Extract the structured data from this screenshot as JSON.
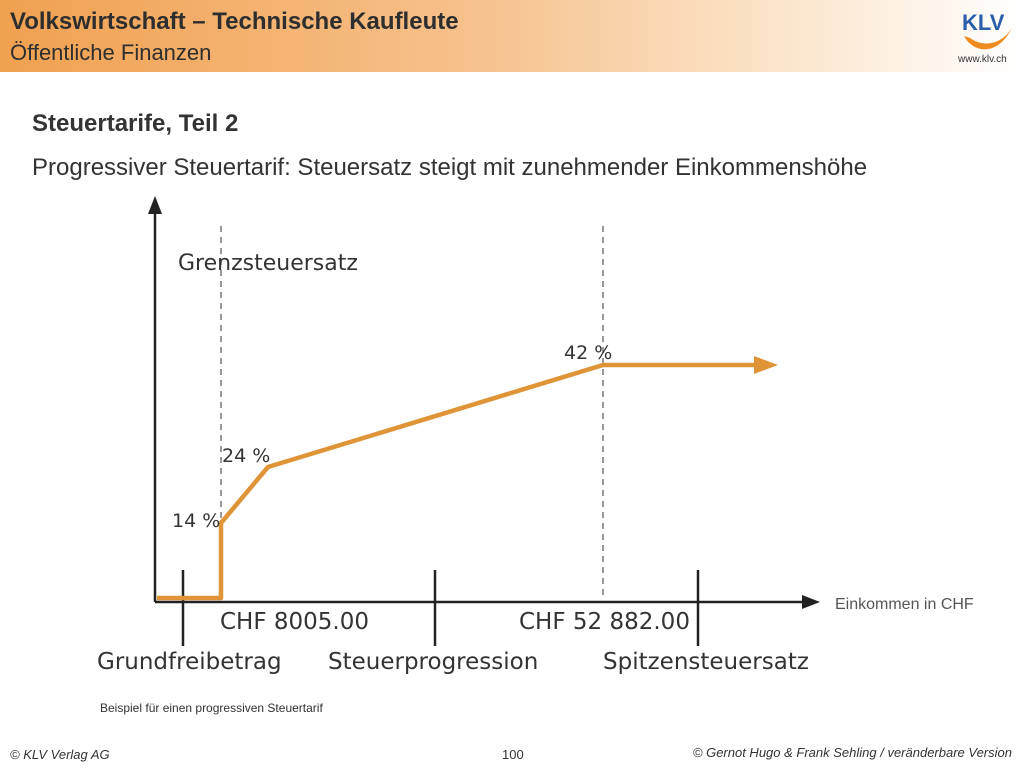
{
  "header": {
    "title": "Volkswirtschaft – Technische Kaufleute",
    "subtitle": "Öffentliche Finanzen",
    "logo_text": "KLV",
    "logo_url": "www.klv.ch"
  },
  "slide": {
    "title": "Steuertarife, Teil 2",
    "subtitle": "Progressiver Steuertarif: Steuersatz steigt mit zunehmender Einkommenshöhe"
  },
  "diagram": {
    "y_axis_label": "Grenzsteuersatz",
    "x_axis_label": "Einkommen in CHF",
    "rate_labels": {
      "r14": "14 %",
      "r24": "24 %",
      "r42": "42 %"
    },
    "thresholds": {
      "t1": "CHF 8005.00",
      "t2": "CHF 52 882.00"
    },
    "zones": {
      "z1": "Grundfreibetrag",
      "z2": "Steuerprogression",
      "z3": "Spitzensteuersatz"
    },
    "colors": {
      "curve": "#e09438",
      "axis": "#222222",
      "dashed": "#999999"
    }
  },
  "caption": "Beispiel für einen progressiven Steuertarif",
  "footer": {
    "left": "© KLV Verlag AG",
    "page": "100",
    "right": "© Gernot Hugo & Frank Sehling / veränderbare Version"
  }
}
